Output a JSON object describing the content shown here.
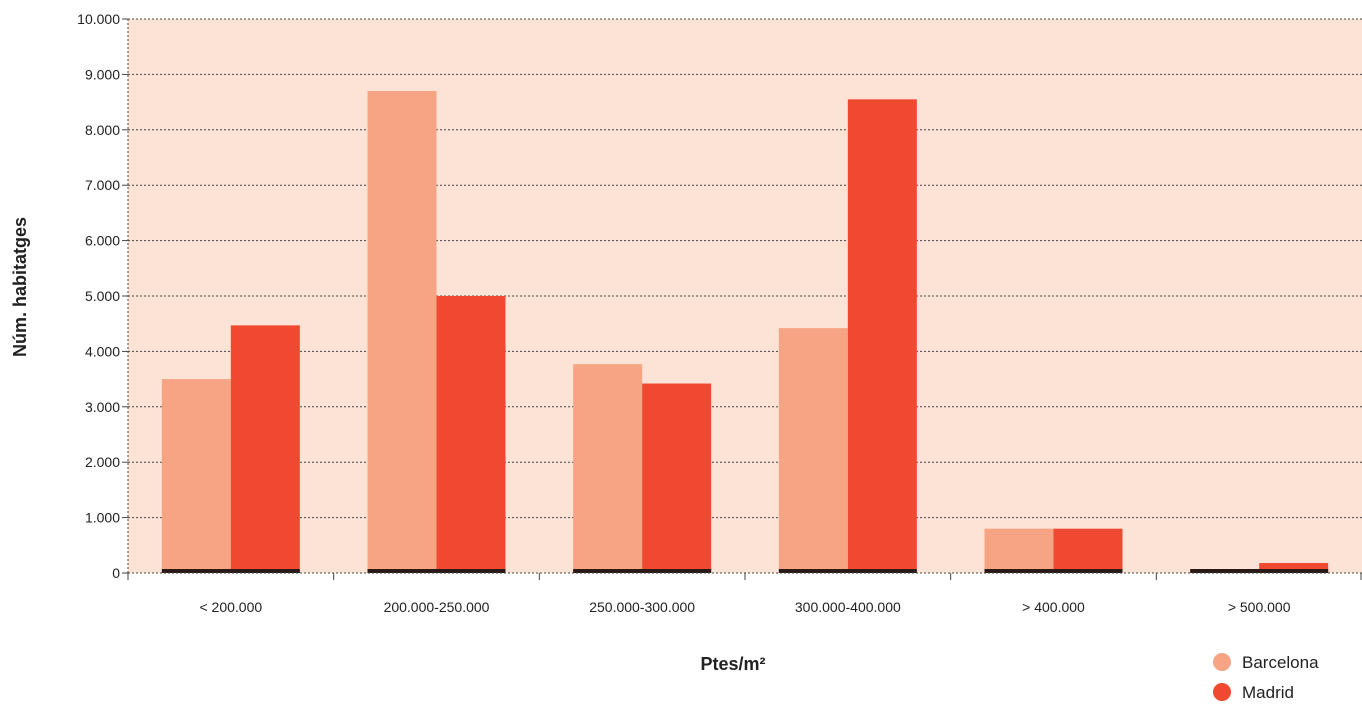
{
  "chart_data": {
    "type": "bar",
    "categories": [
      "< 200.000",
      "200.000-250.000",
      "250.000-300.000",
      "300.000-400.000",
      "> 400.000",
      "> 500.000"
    ],
    "series": [
      {
        "name": "Barcelona",
        "color": "#f7a484",
        "values": [
          3500,
          8700,
          3770,
          4420,
          800,
          0
        ]
      },
      {
        "name": "Madrid",
        "color": "#ef4931",
        "values": [
          4470,
          5000,
          3420,
          8550,
          800,
          180
        ]
      }
    ],
    "xlabel": "Ptes/m²",
    "ylabel": "Núm. habitatges",
    "ylim": [
      0,
      10000
    ],
    "yticks": [
      "0",
      "1.000",
      "2.000",
      "3.000",
      "4.000",
      "5.000",
      "6.000",
      "7.000",
      "8.000",
      "9.000",
      "10.000"
    ],
    "grid": true,
    "legend": "bottom-right",
    "plot_background": "#fde3d6"
  }
}
